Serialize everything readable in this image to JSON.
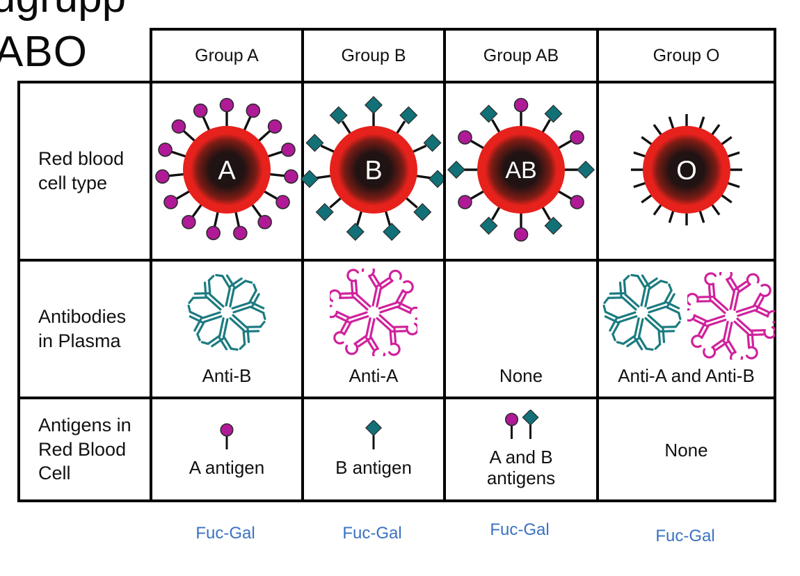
{
  "title": {
    "top_fragment": "ugrupp",
    "abo": "ABO"
  },
  "header": {
    "columns": [
      "Group A",
      "Group B",
      "Group AB",
      "Group O"
    ]
  },
  "row_labels": [
    "Red blood cell type",
    "Antibodies in Plasma",
    "Antigens in Red Blood Cell"
  ],
  "cells": {
    "rbc": [
      {
        "letter": "A",
        "antigens": "circle"
      },
      {
        "letter": "B",
        "antigens": "diamond"
      },
      {
        "letter": "AB",
        "antigens": "both"
      },
      {
        "letter": "O",
        "antigens": "none"
      }
    ],
    "antibodies": [
      {
        "clusters": [
          "anti_b"
        ],
        "label": "Anti-B"
      },
      {
        "clusters": [
          "anti_a"
        ],
        "label": "Anti-A"
      },
      {
        "clusters": [],
        "label": "None"
      },
      {
        "clusters": [
          "anti_b",
          "anti_a"
        ],
        "label": "Anti-A and Anti-B"
      }
    ],
    "antigens": [
      {
        "icons": [
          "circle"
        ],
        "label": "A antigen"
      },
      {
        "icons": [
          "diamond"
        ],
        "label": "B antigen"
      },
      {
        "icons": [
          "circle",
          "diamond"
        ],
        "label": "A and B antigens"
      },
      {
        "icons": [],
        "label": "None"
      }
    ]
  },
  "annotations": {
    "fuc_gal": [
      "Fuc-Gal",
      "Fuc-Gal",
      "Fuc-Gal",
      "Fuc-Gal"
    ]
  },
  "colors": {
    "rbc_red": "#e7211c",
    "rbc_core": "#1b1313",
    "antigen_a": "#b01a97",
    "antigen_b": "#127077",
    "antibody_anti_a": "#d0219c",
    "antibody_anti_b": "#1b7b80",
    "annotation_blue": "#3a72c2",
    "line": "#111111"
  }
}
